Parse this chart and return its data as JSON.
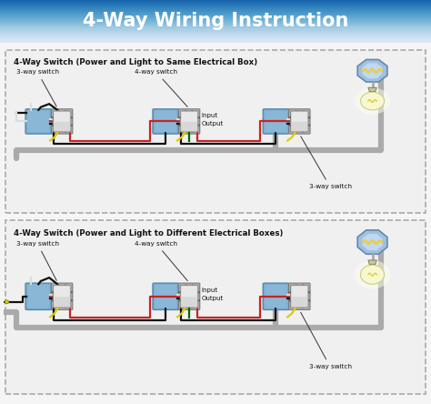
{
  "title": "4-Way Wiring Instruction",
  "title_bg_top": "#3a6a8a",
  "title_bg_bot": "#2a4a6a",
  "title_color": "white",
  "title_fontsize": 15,
  "panel1_title": "4-Way Switch (Power and Light to Same Electrical Box)",
  "panel2_title": "4-Way Switch (Power and Light to Different Electrical Boxes)",
  "panel_bg": "#f0f0f0",
  "panel_border": "#999999",
  "wire_black": "#111111",
  "wire_red": "#cc2222",
  "wire_white": "#dddddd",
  "wire_yellow": "#ddcc00",
  "wire_green": "#006600",
  "wire_gray": "#aaaaaa",
  "switch_face": "#d8d8d8",
  "switch_border": "#888888",
  "switch_top": "#c0c0c0",
  "box_fill": "#7ab0d4",
  "box_border": "#5588aa",
  "ceiling_fill": "#a0c0e0",
  "ceiling_border": "#6688aa",
  "lamp_bulb": "#f8f8d0",
  "lamp_glow": "#ffffaa",
  "lamp_base": "#c8c8a8",
  "bg_color": "#f5f5f5",
  "label_color": "#111111",
  "label_3way_left": "3-way switch",
  "label_4way": "4-way switch",
  "label_input": "Input",
  "label_output": "Output",
  "label_3way_right": "3-way switch"
}
